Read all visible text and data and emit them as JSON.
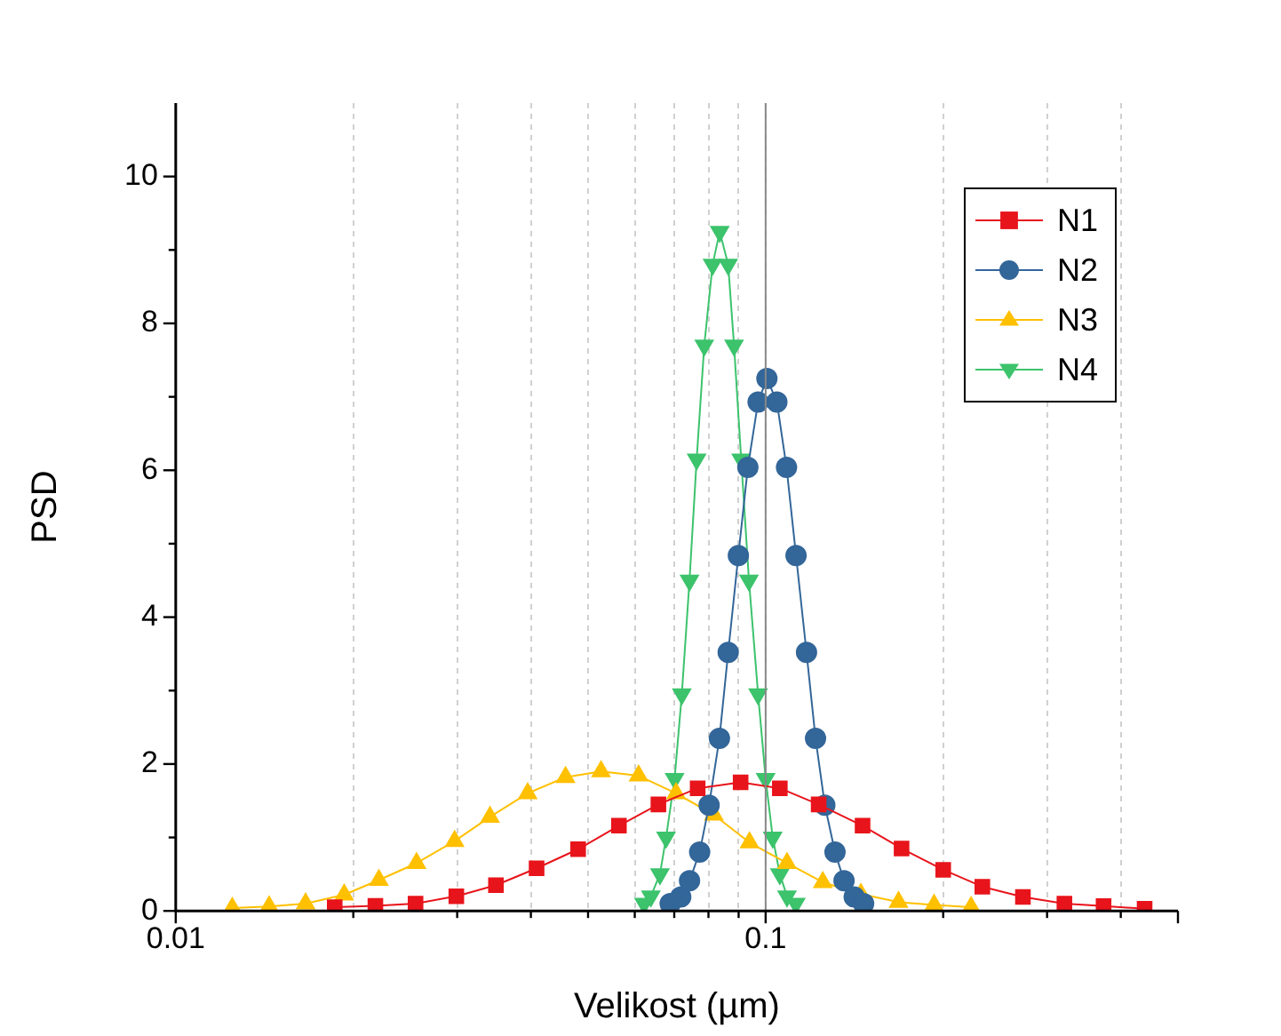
{
  "chart_data": {
    "type": "line",
    "xlabel": "Velikost (µm)",
    "ylabel": "PSD",
    "log": "x",
    "grid": "x",
    "legend": "top right",
    "xlim": [
      0.01,
      0.5
    ],
    "xticks": [
      0.01,
      {
        "value": 0.02,
        "label": null
      },
      {
        "value": 0.03,
        "label": null
      },
      {
        "value": 0.04,
        "label": null
      },
      {
        "value": 0.05,
        "label": null
      },
      {
        "value": 0.06,
        "label": null
      },
      {
        "value": 0.07,
        "label": null
      },
      {
        "value": 0.08,
        "label": null
      },
      {
        "value": 0.09,
        "label": null
      },
      0.1,
      {
        "value": 0.2,
        "label": null
      },
      {
        "value": 0.3,
        "label": null
      },
      {
        "value": 0.4,
        "label": null
      }
    ],
    "ylim": [
      0,
      11
    ],
    "yticks": [
      0,
      {
        "value": 1,
        "label": null
      },
      2,
      {
        "value": 3,
        "label": null
      },
      4,
      {
        "value": 5,
        "label": null
      },
      6,
      {
        "value": 7,
        "label": null
      },
      8,
      {
        "value": 9,
        "label": null
      },
      10
    ],
    "ref_lines": [
      {
        "axis": "x",
        "value": 0.1,
        "label": null,
        "color": "#888888"
      }
    ],
    "series": [
      {
        "name": "N1",
        "color": "#e8141b",
        "marker": "square",
        "x": [
          0.0186,
          0.0218,
          0.0255,
          0.0299,
          0.0349,
          0.0409,
          0.0481,
          0.0564,
          0.0658,
          0.0767,
          0.0907,
          0.1057,
          0.123,
          0.146,
          0.17,
          0.2,
          0.233,
          0.273,
          0.321,
          0.374,
          0.439
        ],
        "values": [
          0.05,
          0.07,
          0.1,
          0.2,
          0.35,
          0.58,
          0.84,
          1.16,
          1.45,
          1.67,
          1.75,
          1.67,
          1.45,
          1.16,
          0.85,
          0.56,
          0.33,
          0.19,
          0.1,
          0.065,
          0.03
        ]
      },
      {
        "name": "N2",
        "color": "#336699",
        "marker": "circle",
        "x": [
          0.0689,
          0.0718,
          0.0743,
          0.0773,
          0.0802,
          0.0835,
          0.0864,
          0.0899,
          0.0933,
          0.0971,
          0.1005,
          0.1045,
          0.1085,
          0.1126,
          0.1173,
          0.1215,
          0.126,
          0.1311,
          0.1358,
          0.1413,
          0.1466
        ],
        "values": [
          0.1,
          0.19,
          0.41,
          0.8,
          1.44,
          2.35,
          3.52,
          4.84,
          6.04,
          6.93,
          7.25,
          6.93,
          6.04,
          4.84,
          3.52,
          2.35,
          1.44,
          0.8,
          0.41,
          0.19,
          0.1
        ]
      },
      {
        "name": "N3",
        "color": "#ffc000",
        "marker": "triangle",
        "x": [
          0.01247,
          0.0144,
          0.0166,
          0.0193,
          0.0221,
          0.0256,
          0.0297,
          0.0341,
          0.0395,
          0.0458,
          0.0526,
          0.0609,
          0.0705,
          0.0817,
          0.0939,
          0.1087,
          0.125,
          0.145,
          0.168,
          0.193,
          0.223
        ],
        "values": [
          0.04,
          0.06,
          0.1,
          0.22,
          0.42,
          0.65,
          0.95,
          1.28,
          1.6,
          1.82,
          1.9,
          1.84,
          1.6,
          1.31,
          0.93,
          0.65,
          0.39,
          0.23,
          0.12,
          0.08,
          0.05
        ]
      },
      {
        "name": "N4",
        "color": "#3cc36c",
        "marker": "triangle-down",
        "x": [
          0.0622,
          0.0639,
          0.0662,
          0.0678,
          0.0701,
          0.0721,
          0.0743,
          0.0764,
          0.0787,
          0.0813,
          0.0836,
          0.0864,
          0.0884,
          0.0909,
          0.0937,
          0.0971,
          0.1,
          0.1028,
          0.1057,
          0.1087,
          0.1125
        ],
        "values": [
          0.1,
          0.2,
          0.5,
          1.0,
          1.8,
          2.95,
          4.5,
          6.15,
          7.7,
          8.8,
          9.25,
          8.8,
          7.7,
          6.15,
          4.5,
          2.95,
          1.8,
          1.0,
          0.5,
          0.2,
          0.1
        ]
      }
    ]
  }
}
